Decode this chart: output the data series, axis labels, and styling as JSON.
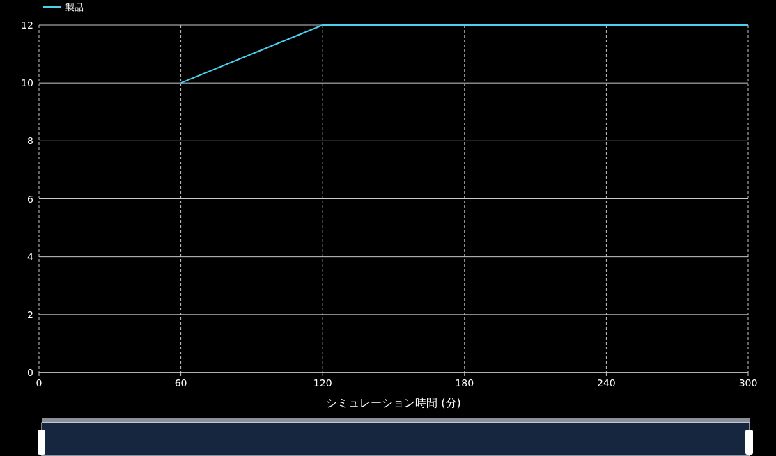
{
  "chart_data": {
    "type": "line",
    "xlabel": "シミュレーション時間 (分)",
    "x": [
      60,
      120,
      180,
      240,
      300
    ],
    "series": [
      {
        "name": "製品",
        "color": "#4dd0f0",
        "values": [
          10,
          12,
          12,
          12,
          12
        ]
      }
    ],
    "xlim": [
      0,
      300
    ],
    "xticks": [
      0,
      60,
      120,
      180,
      240,
      300
    ],
    "ylim": [
      0,
      12
    ],
    "yticks": [
      0,
      2,
      4,
      6,
      8,
      10,
      12
    ],
    "grid": true,
    "legend": "top left",
    "marker": "none",
    "line_style": "solid"
  }
}
